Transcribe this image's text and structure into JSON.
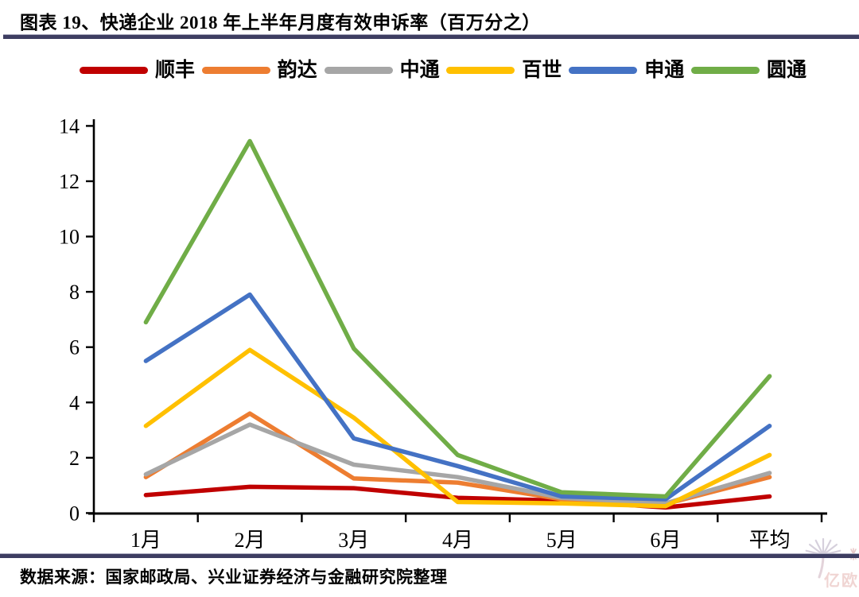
{
  "header": {
    "title": "图表 19、快递企业 2018 年上半年月度有效申诉率（百万分之）"
  },
  "footer": {
    "source": "数据来源：国家邮政局、兴业证券经济与金融研究院整理"
  },
  "watermark": {
    "brand": "亿欧"
  },
  "colors": {
    "divider": "#3d3d61",
    "axis": "#000000",
    "watermark_pink": "#f0d5d3",
    "watermark_gray": "#cdc5d4"
  },
  "chart_data": {
    "type": "line",
    "title": "快递企业 2018 年上半年月度有效申诉率（百万分之）",
    "categories": [
      "1月",
      "2月",
      "3月",
      "4月",
      "5月",
      "6月",
      "平均"
    ],
    "series": [
      {
        "name": "顺丰",
        "color": "#C00000",
        "values": [
          0.65,
          0.95,
          0.9,
          0.55,
          0.45,
          0.2,
          0.6
        ]
      },
      {
        "name": "韵达",
        "color": "#ED7D31",
        "values": [
          1.3,
          3.6,
          1.25,
          1.1,
          0.5,
          0.33,
          1.3
        ]
      },
      {
        "name": "中通",
        "color": "#A6A6A6",
        "values": [
          1.4,
          3.2,
          1.75,
          1.3,
          0.55,
          0.35,
          1.45
        ]
      },
      {
        "name": "百世",
        "color": "#FFC000",
        "values": [
          3.15,
          5.9,
          3.45,
          0.4,
          0.35,
          0.25,
          2.1
        ]
      },
      {
        "name": "申通",
        "color": "#4472C4",
        "values": [
          5.5,
          7.9,
          2.7,
          1.7,
          0.6,
          0.5,
          3.15
        ]
      },
      {
        "name": "圆通",
        "color": "#70AD47",
        "values": [
          6.9,
          13.45,
          5.95,
          2.1,
          0.75,
          0.6,
          4.95
        ]
      }
    ],
    "xlabel": "",
    "ylabel": "",
    "ylim": [
      0,
      14
    ],
    "yticks": [
      0,
      2,
      4,
      6,
      8,
      10,
      12,
      14
    ],
    "grid": false,
    "legend_position": "top",
    "unit": "百万分之（per million）"
  }
}
